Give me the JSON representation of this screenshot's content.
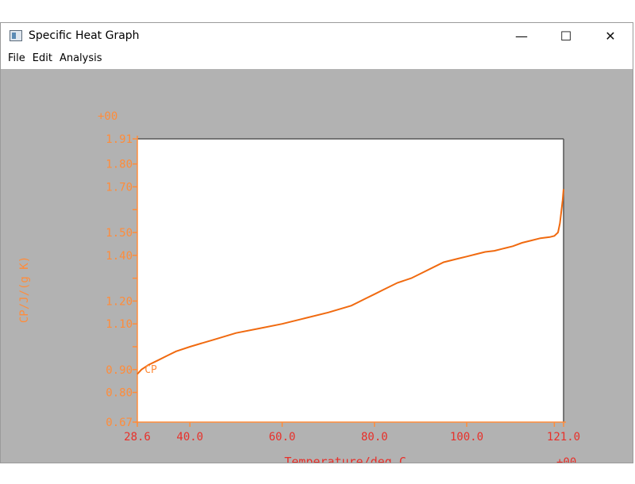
{
  "window": {
    "title": "Specific Heat Graph",
    "icon": "window-app-icon",
    "controls": {
      "minimize": "—",
      "maximize": "☐",
      "close": "✕"
    }
  },
  "menu": [
    {
      "label": "File"
    },
    {
      "label": "Edit"
    },
    {
      "label": "Analysis"
    }
  ],
  "colors": {
    "axis": "#ff8c3a",
    "xlabels": "#e8302a",
    "curve": "#f06a10",
    "plot_bg": "#ffffff",
    "client_bg": "#b2b2b2"
  },
  "chart_data": {
    "type": "line",
    "title": "",
    "xlabel": "Temperature/deg C",
    "ylabel": "CP/J/(g K)",
    "x_exponent": "+00",
    "y_exponent": "+00",
    "xlim": [
      28.6,
      121.0
    ],
    "ylim": [
      0.67,
      1.91
    ],
    "x_ticks": [
      28.6,
      40.0,
      60.0,
      80.0,
      100.0,
      121.0
    ],
    "x_tick_labels": [
      "28.6",
      "40.0",
      "60.0",
      "80.0",
      "100.0",
      "121.0"
    ],
    "y_ticks": [
      0.67,
      0.8,
      0.9,
      1.1,
      1.2,
      1.4,
      1.5,
      1.7,
      1.8,
      1.91
    ],
    "y_tick_labels": [
      "0.67",
      "0.80",
      "0.90",
      "1.10",
      "1.20",
      "1.40",
      "1.50",
      "1.70",
      "1.80",
      "1.91"
    ],
    "y_minor_ticks": [
      1.0,
      1.3,
      1.6
    ],
    "grid": false,
    "series": [
      {
        "name": "CP",
        "x": [
          28.6,
          29.5,
          31,
          33,
          35,
          37,
          40,
          45,
          50,
          55,
          60,
          65,
          70,
          75,
          78,
          80,
          82,
          85,
          88,
          90,
          93,
          95,
          98,
          100,
          102,
          104,
          106,
          108,
          110,
          112,
          114,
          116,
          118,
          119,
          119.8,
          120.2,
          120.5,
          120.8,
          121.0
        ],
        "y": [
          0.88,
          0.9,
          0.92,
          0.94,
          0.96,
          0.98,
          1.0,
          1.03,
          1.06,
          1.08,
          1.1,
          1.125,
          1.15,
          1.18,
          1.21,
          1.23,
          1.25,
          1.28,
          1.3,
          1.32,
          1.35,
          1.37,
          1.385,
          1.395,
          1.405,
          1.415,
          1.42,
          1.43,
          1.44,
          1.455,
          1.465,
          1.475,
          1.48,
          1.485,
          1.5,
          1.54,
          1.59,
          1.64,
          1.69
        ]
      }
    ]
  }
}
